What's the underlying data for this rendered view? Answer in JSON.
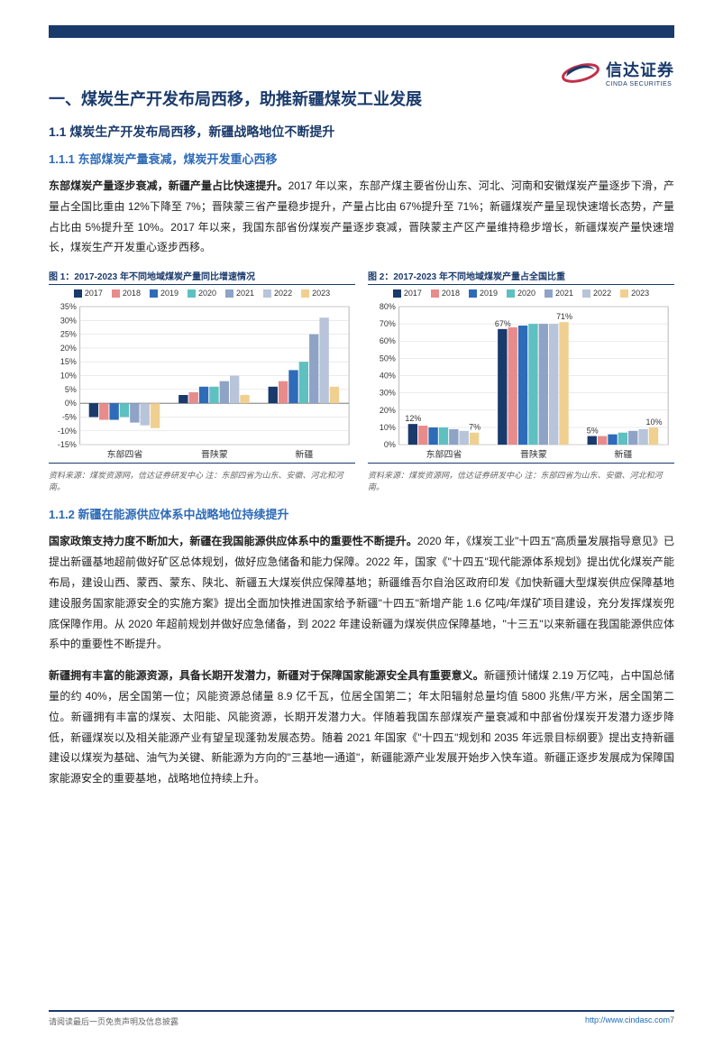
{
  "logo": {
    "cn": "信达证券",
    "en": "CINDA SECURITIES"
  },
  "h1": "一、煤炭生产开发布局西移，助推新疆煤炭工业发展",
  "h2_1": "1.1 煤炭生产开发布局西移，新疆战略地位不断提升",
  "h3_1": "1.1.1 东部煤炭产量衰减，煤炭开发重心西移",
  "p1_lead": "东部煤炭产量逐步衰减，新疆产量占比快速提升。",
  "p1": "2017 年以来，东部产煤主要省份山东、河北、河南和安徽煤炭产量逐步下滑，产量占全国比重由 12%下降至 7%；晋陕蒙三省产量稳步提升，产量占比由 67%提升至 71%；新疆煤炭产量呈现快速增长态势，产量占比由 5%提升至 10%。2017 年以来，我国东部省份煤炭产量逐步衰减，晋陕蒙主产区产量维持稳步增长，新疆煤炭产量快速增长，煤炭生产开发重心逐步西移。",
  "chart1_title": "图 1：2017-2023 年不同地域煤炭产量同比增速情况",
  "chart2_title": "图 2：2017-2023 年不同地域煤炭产量占全国比重",
  "chart_source": "资料来源：煤炭资源网，信达证券研发中心 注：东部四省为山东、安徽、河北和河南。",
  "legend_years": [
    "2017",
    "2018",
    "2019",
    "2020",
    "2021",
    "2022",
    "2023"
  ],
  "year_colors": [
    "#1a3a6b",
    "#e88b8b",
    "#2e6bb8",
    "#5ec0c0",
    "#8fa3c7",
    "#b8c4d9",
    "#f0d090"
  ],
  "cats": [
    "东部四省",
    "晋陕蒙",
    "新疆"
  ],
  "chart1": {
    "type": "bar",
    "ylim": [
      -15,
      35
    ],
    "ytick_step": 5,
    "yformat": "pct",
    "series": [
      [
        -5,
        -6,
        -6,
        -5,
        -7,
        -8,
        -9
      ],
      [
        3,
        4,
        6,
        6,
        8,
        10,
        3
      ],
      [
        6,
        8,
        12,
        15,
        25,
        31,
        6
      ]
    ],
    "background": "#ffffff",
    "grid_color": "#d8d8d8",
    "tick_fontsize": 9,
    "frame": true
  },
  "chart2": {
    "type": "bar",
    "ylim": [
      0,
      80
    ],
    "ytick_step": 10,
    "yformat": "pct",
    "series": [
      [
        12,
        11,
        10,
        10,
        9,
        8,
        7
      ],
      [
        67,
        68,
        69,
        70,
        70,
        70,
        71
      ],
      [
        5,
        5,
        6,
        7,
        8,
        9,
        10
      ]
    ],
    "annotations": [
      {
        "cat": 0,
        "year": 0,
        "label": "12%"
      },
      {
        "cat": 0,
        "year": 6,
        "label": "7%"
      },
      {
        "cat": 1,
        "year": 0,
        "label": "67%"
      },
      {
        "cat": 1,
        "year": 6,
        "label": "71%"
      },
      {
        "cat": 2,
        "year": 0,
        "label": "5%"
      },
      {
        "cat": 2,
        "year": 6,
        "label": "10%"
      }
    ],
    "background": "#ffffff",
    "grid_color": "#d8d8d8",
    "tick_fontsize": 9,
    "frame": true
  },
  "h3_2": "1.1.2 新疆在能源供应体系中战略地位持续提升",
  "p2_lead": "国家政策支持力度不断加大，新疆在我国能源供应体系中的重要性不断提升。",
  "p2": "2020 年，《煤炭工业\"十四五\"高质量发展指导意见》已提出新疆基地超前做好矿区总体规划，做好应急储备和能力保障。2022 年，国家《\"十四五\"现代能源体系规划》提出优化煤炭产能布局，建设山西、蒙西、蒙东、陕北、新疆五大煤炭供应保障基地；新疆维吾尔自治区政府印发《加快新疆大型煤炭供应保障基地建设服务国家能源安全的实施方案》提出全面加快推进国家给予新疆\"十四五\"新增产能 1.6 亿吨/年煤矿项目建设，充分发挥煤炭兜底保障作用。从 2020 年超前规划并做好应急储备，到 2022 年建设新疆为煤炭供应保障基地，\"十三五\"以来新疆在我国能源供应体系中的重要性不断提升。",
  "p3_lead": "新疆拥有丰富的能源资源，具备长期开发潜力，新疆对于保障国家能源安全具有重要意义。",
  "p3": "新疆预计储煤 2.19 万亿吨，占中国总储量的约 40%，居全国第一位；风能资源总储量 8.9 亿千瓦，位居全国第二；年太阳辐射总量均值 5800 兆焦/平方米，居全国第二位。新疆拥有丰富的煤炭、太阳能、风能资源，长期开发潜力大。伴随着我国东部煤炭产量衰减和中部省份煤炭开发潜力逐步降低，新疆煤炭以及相关能源产业有望呈现蓬勃发展态势。随着 2021 年国家《\"十四五\"规划和 2035 年远景目标纲要》提出支持新疆建设以煤炭为基础、油气为关键、新能源为方向的\"三基地一通道\"，新疆能源产业发展开始步入快车道。新疆正逐步发展成为保障国家能源安全的重要基地，战略地位持续上升。",
  "footer_left": "请阅读最后一页免责声明及信息披露",
  "footer_link": "http://www.cindasc.com",
  "footer_page": "7"
}
